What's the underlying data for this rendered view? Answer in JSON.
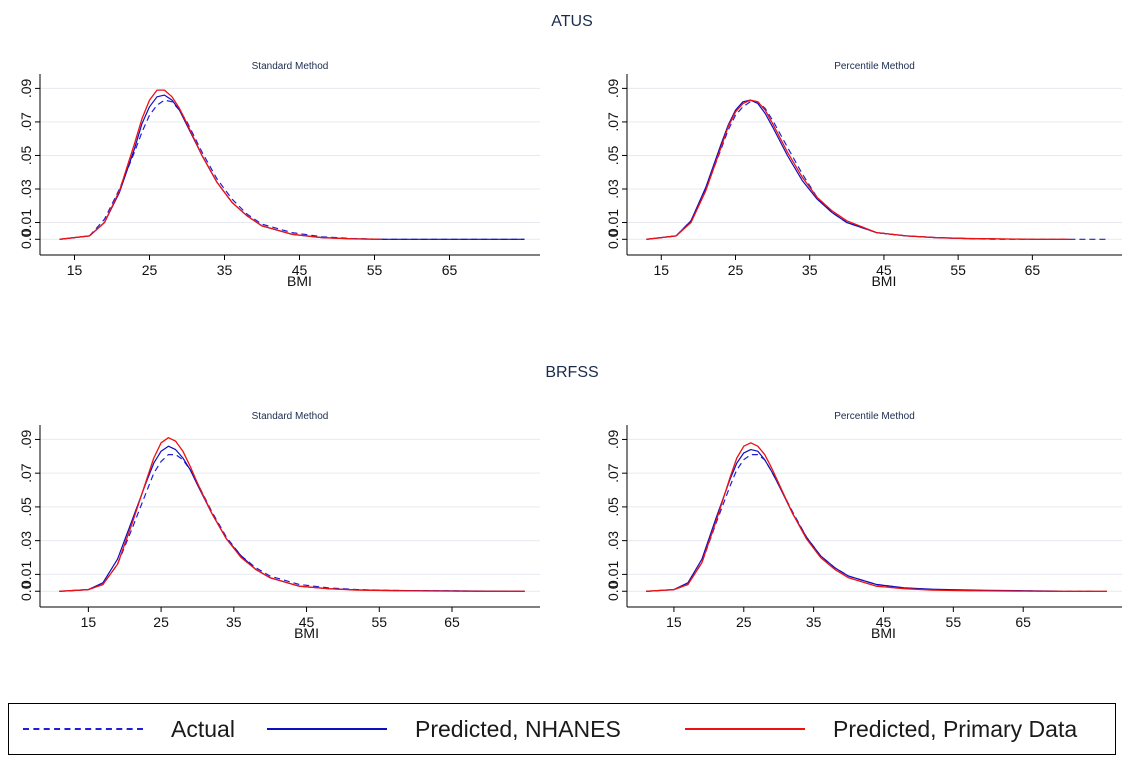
{
  "colors": {
    "actual": "#1f1fd9",
    "predicted_nhanes": "#0f0fbf",
    "predicted_primary": "#ee1111"
  },
  "panel_titles": [
    "ATUS",
    "BRFSS"
  ],
  "legend": {
    "actual": "Actual",
    "predicted_nhanes": "Predicted, NHANES",
    "predicted_primary": "Predicted, Primary Data"
  },
  "chart_data": [
    {
      "type": "line",
      "group": "ATUS",
      "title": "Standard Method",
      "xlabel": "BMI",
      "ylabel": "",
      "xlim": [
        12,
        76
      ],
      "ylim": [
        -0.004,
        0.095
      ],
      "xticks": [
        "15",
        "25",
        "35",
        "45",
        "55",
        "65"
      ],
      "yticks": [
        "0.0",
        "0.01",
        ".03",
        ".05",
        ".07",
        ".09"
      ],
      "series": [
        {
          "name": "Actual",
          "x": [
            13,
            17,
            19,
            21,
            23,
            24,
            25,
            26,
            27,
            28,
            29,
            30,
            32,
            34,
            36,
            38,
            40,
            44,
            48,
            52,
            56,
            60,
            65,
            70,
            75
          ],
          "y": [
            0,
            0.002,
            0.012,
            0.03,
            0.052,
            0.064,
            0.074,
            0.08,
            0.083,
            0.082,
            0.077,
            0.07,
            0.052,
            0.036,
            0.024,
            0.015,
            0.009,
            0.004,
            0.0015,
            0.0005,
            0,
            0,
            0,
            0,
            0
          ]
        },
        {
          "name": "Predicted, NHANES",
          "x": [
            13,
            17,
            19,
            21,
            23,
            24,
            25,
            26,
            27,
            28,
            29,
            30,
            32,
            34,
            36,
            38,
            40,
            44,
            48,
            52,
            56,
            60,
            65,
            70,
            75
          ],
          "y": [
            0,
            0.002,
            0.01,
            0.028,
            0.054,
            0.069,
            0.079,
            0.085,
            0.086,
            0.083,
            0.077,
            0.068,
            0.05,
            0.034,
            0.022,
            0.014,
            0.008,
            0.003,
            0.001,
            0.0003,
            0,
            0,
            0,
            0,
            0
          ]
        },
        {
          "name": "Predicted, Primary Data",
          "x": [
            13,
            17,
            19,
            21,
            23,
            24,
            25,
            26,
            27,
            28,
            29,
            30,
            32,
            34,
            36,
            38,
            40,
            44,
            48,
            52,
            56
          ],
          "y": [
            0,
            0.002,
            0.01,
            0.029,
            0.057,
            0.072,
            0.083,
            0.089,
            0.089,
            0.085,
            0.078,
            0.069,
            0.05,
            0.034,
            0.022,
            0.014,
            0.008,
            0.003,
            0.001,
            0.0003,
            0
          ]
        }
      ]
    },
    {
      "type": "line",
      "group": "ATUS",
      "title": "Percentile Method",
      "xlabel": "BMI",
      "ylabel": "",
      "xlim": [
        12,
        76
      ],
      "ylim": [
        -0.004,
        0.095
      ],
      "xticks": [
        "15",
        "25",
        "35",
        "45",
        "55",
        "65"
      ],
      "yticks": [
        "0.0",
        "0.01",
        ".03",
        ".05",
        ".07",
        ".09"
      ],
      "series": [
        {
          "name": "Actual",
          "x": [
            13,
            17,
            19,
            21,
            23,
            24,
            25,
            26,
            27,
            28,
            29,
            30,
            32,
            34,
            36,
            38,
            40,
            44,
            48,
            52,
            56,
            60,
            65,
            70,
            75
          ],
          "y": [
            0,
            0.002,
            0.011,
            0.03,
            0.053,
            0.065,
            0.074,
            0.079,
            0.082,
            0.082,
            0.078,
            0.071,
            0.055,
            0.039,
            0.025,
            0.016,
            0.01,
            0.004,
            0.002,
            0.001,
            0.0005,
            0,
            0,
            0,
            0
          ]
        },
        {
          "name": "Predicted, NHANES",
          "x": [
            13,
            17,
            19,
            21,
            23,
            24,
            25,
            26,
            27,
            28,
            29,
            30,
            32,
            34,
            36,
            38,
            40,
            44,
            48,
            52,
            56,
            60
          ],
          "y": [
            0,
            0.002,
            0.011,
            0.031,
            0.056,
            0.068,
            0.077,
            0.082,
            0.083,
            0.081,
            0.075,
            0.067,
            0.05,
            0.035,
            0.024,
            0.016,
            0.01,
            0.004,
            0.002,
            0.001,
            0.0005,
            0.0003
          ]
        },
        {
          "name": "Predicted, Primary Data",
          "x": [
            13,
            17,
            19,
            21,
            23,
            24,
            25,
            26,
            27,
            28,
            29,
            30,
            32,
            34,
            36,
            38,
            40,
            44,
            48,
            52,
            56,
            60,
            65,
            70
          ],
          "y": [
            0,
            0.002,
            0.01,
            0.029,
            0.054,
            0.067,
            0.076,
            0.081,
            0.083,
            0.082,
            0.077,
            0.069,
            0.052,
            0.037,
            0.025,
            0.017,
            0.011,
            0.004,
            0.002,
            0.001,
            0.0005,
            0.0003,
            0,
            0
          ]
        }
      ]
    },
    {
      "type": "line",
      "group": "BRFSS",
      "title": "Standard Method",
      "xlabel": "BMI",
      "ylabel": "",
      "xlim": [
        10,
        76
      ],
      "ylim": [
        -0.004,
        0.095
      ],
      "xticks": [
        "15",
        "25",
        "35",
        "45",
        "55",
        "65"
      ],
      "yticks": [
        "0.0",
        "0.01",
        ".03",
        ".05",
        ".07",
        ".09"
      ],
      "series": [
        {
          "name": "Actual",
          "x": [
            11,
            15,
            17,
            19,
            21,
            23,
            24,
            25,
            26,
            27,
            28,
            29,
            30,
            32,
            34,
            36,
            38,
            40,
            44,
            48,
            52,
            56,
            60,
            65,
            70,
            75
          ],
          "y": [
            0,
            0.001,
            0.004,
            0.016,
            0.037,
            0.059,
            0.07,
            0.077,
            0.081,
            0.081,
            0.078,
            0.072,
            0.064,
            0.047,
            0.032,
            0.021,
            0.014,
            0.009,
            0.004,
            0.002,
            0.001,
            0.0005,
            0.0003,
            0.0002,
            0,
            0
          ]
        },
        {
          "name": "Predicted, NHANES",
          "x": [
            11,
            15,
            17,
            19,
            21,
            23,
            24,
            25,
            26,
            27,
            28,
            29,
            30,
            32,
            34,
            36,
            38,
            40,
            44,
            48,
            52,
            56,
            60,
            65,
            70,
            75
          ],
          "y": [
            0,
            0.001,
            0.005,
            0.019,
            0.042,
            0.065,
            0.076,
            0.083,
            0.086,
            0.084,
            0.079,
            0.072,
            0.063,
            0.046,
            0.031,
            0.021,
            0.013,
            0.008,
            0.003,
            0.0015,
            0.0008,
            0.0005,
            0.0003,
            0.0002,
            0.0001,
            0
          ]
        },
        {
          "name": "Predicted, Primary Data",
          "x": [
            11,
            15,
            17,
            19,
            21,
            23,
            24,
            25,
            26,
            27,
            28,
            29,
            30,
            32,
            34,
            36,
            38,
            40,
            44,
            48,
            52,
            56,
            60,
            65,
            70,
            75
          ],
          "y": [
            0,
            0.001,
            0.004,
            0.016,
            0.04,
            0.066,
            0.079,
            0.088,
            0.091,
            0.089,
            0.083,
            0.074,
            0.064,
            0.046,
            0.031,
            0.02,
            0.013,
            0.008,
            0.003,
            0.0015,
            0.0007,
            0.0004,
            0.0002,
            0.0001,
            0,
            0
          ]
        }
      ]
    },
    {
      "type": "line",
      "group": "BRFSS",
      "title": "Percentile Method",
      "xlabel": "BMI",
      "ylabel": "",
      "xlim": [
        10,
        78
      ],
      "ylim": [
        -0.004,
        0.095
      ],
      "xticks": [
        "15",
        "25",
        "35",
        "45",
        "55",
        "65"
      ],
      "yticks": [
        "0.0",
        "0.01",
        ".03",
        ".05",
        ".07",
        ".09"
      ],
      "series": [
        {
          "name": "Actual",
          "x": [
            11,
            15,
            17,
            19,
            21,
            23,
            24,
            25,
            26,
            27,
            28,
            29,
            30,
            32,
            34,
            36,
            38,
            40,
            44,
            48,
            52,
            56,
            60,
            65,
            70,
            75
          ],
          "y": [
            0,
            0.001,
            0.004,
            0.017,
            0.04,
            0.062,
            0.072,
            0.078,
            0.081,
            0.081,
            0.078,
            0.071,
            0.063,
            0.047,
            0.032,
            0.021,
            0.014,
            0.009,
            0.004,
            0.002,
            0.001,
            0.0005,
            0.0003,
            0.0002,
            0,
            0
          ]
        },
        {
          "name": "Predicted, NHANES",
          "x": [
            11,
            15,
            17,
            19,
            21,
            23,
            24,
            25,
            26,
            27,
            28,
            29,
            30,
            32,
            34,
            36,
            38,
            40,
            44,
            48,
            52,
            56,
            60,
            65,
            70
          ],
          "y": [
            0,
            0.001,
            0.005,
            0.019,
            0.043,
            0.066,
            0.076,
            0.082,
            0.084,
            0.083,
            0.078,
            0.071,
            0.063,
            0.046,
            0.032,
            0.021,
            0.014,
            0.009,
            0.004,
            0.002,
            0.0012,
            0.0008,
            0.0005,
            0.0003,
            0.0001
          ]
        },
        {
          "name": "Predicted, Primary Data",
          "x": [
            11,
            15,
            17,
            19,
            21,
            23,
            24,
            25,
            26,
            27,
            28,
            29,
            30,
            32,
            34,
            36,
            38,
            40,
            44,
            48,
            52,
            56,
            60,
            65,
            70,
            77
          ],
          "y": [
            0,
            0.001,
            0.004,
            0.017,
            0.041,
            0.067,
            0.079,
            0.086,
            0.088,
            0.086,
            0.081,
            0.073,
            0.064,
            0.046,
            0.031,
            0.02,
            0.013,
            0.008,
            0.003,
            0.0015,
            0.0007,
            0.0004,
            0.0002,
            0.0001,
            0,
            0
          ]
        }
      ]
    }
  ]
}
